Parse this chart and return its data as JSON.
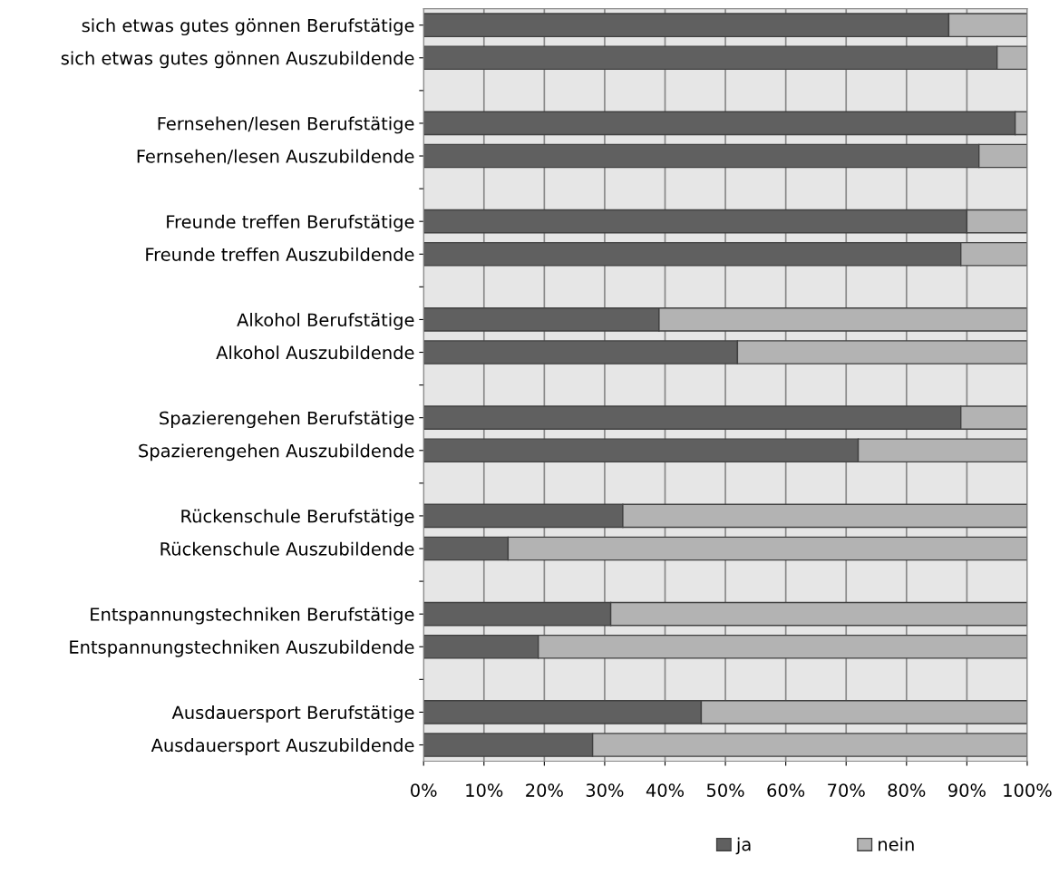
{
  "chart_data": {
    "type": "bar",
    "orientation": "horizontal",
    "stacked": true,
    "categories": [
      "sich etwas gutes gönnen Berufstätige",
      "sich etwas gutes gönnen Auszubildende",
      null,
      "Fernsehen/lesen Berufstätige",
      "Fernsehen/lesen Auszubildende",
      null,
      "Freunde treffen Berufstätige",
      "Freunde treffen Auszubildende",
      null,
      "Alkohol Berufstätige",
      "Alkohol Auszubildende",
      null,
      "Spazierengehen Berufstätige",
      "Spazierengehen Auszubildende",
      null,
      "Rückenschule Berufstätige",
      "Rückenschule Auszubildende",
      null,
      "Entspannungstechniken Berufstätige",
      "Entspannungstechniken Auszubildende",
      null,
      "Ausdauersport Berufstätige",
      "Ausdauersport Auszubildende"
    ],
    "series": [
      {
        "name": "ja",
        "color": "#606060",
        "values": [
          87,
          95,
          null,
          98,
          92,
          null,
          90,
          89,
          null,
          39,
          52,
          null,
          89,
          72,
          null,
          33,
          14,
          null,
          31,
          19,
          null,
          46,
          28
        ]
      },
      {
        "name": "nein",
        "color": "#b3b3b3",
        "values": [
          13,
          5,
          null,
          2,
          8,
          null,
          10,
          11,
          null,
          61,
          48,
          null,
          11,
          28,
          null,
          67,
          86,
          null,
          69,
          81,
          null,
          54,
          72
        ]
      }
    ],
    "xlim": [
      0,
      100
    ],
    "xticks": [
      {
        "value": 0,
        "label": "0%"
      },
      {
        "value": 10,
        "label": "10%"
      },
      {
        "value": 20,
        "label": "20%"
      },
      {
        "value": 30,
        "label": "30%"
      },
      {
        "value": 40,
        "label": "40%"
      },
      {
        "value": 50,
        "label": "50%"
      },
      {
        "value": 60,
        "label": "60%"
      },
      {
        "value": 70,
        "label": "70%"
      },
      {
        "value": 80,
        "label": "80%"
      },
      {
        "value": 90,
        "label": "90%"
      },
      {
        "value": 100,
        "label": "100%"
      }
    ],
    "grid": "x",
    "legend": "bottom"
  }
}
